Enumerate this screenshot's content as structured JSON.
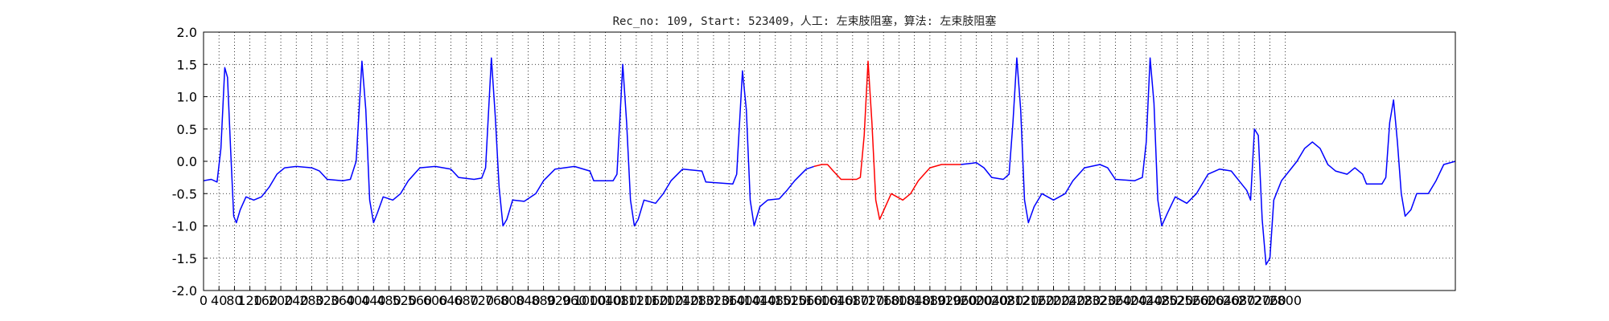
{
  "chart_data": {
    "type": "line",
    "title": "Rec_no: 109, Start: 523409，人工: 左束肢阻塞，算法: 左束肢阻塞",
    "xlabel": "",
    "ylabel": "",
    "xlim": [
      0,
      3240
    ],
    "ylim": [
      -2.0,
      2.0
    ],
    "y_ticks": [
      "2.0",
      "1.5",
      "1.0",
      "0.5",
      "0.0",
      "-0.5",
      "-1.0",
      "-1.5",
      "-2.0"
    ],
    "y_tick_values": [
      2.0,
      1.5,
      1.0,
      0.5,
      0.0,
      -0.5,
      -1.0,
      -1.5,
      -2.0
    ],
    "x_tick_values": [
      0,
      40,
      80,
      120,
      160,
      200,
      240,
      280,
      320,
      360,
      400,
      440,
      480,
      520,
      560,
      600,
      640,
      680,
      720,
      760,
      800,
      840,
      880,
      920,
      960,
      1000,
      1040,
      1080,
      1120,
      1160,
      1200,
      1240,
      1280,
      1320,
      1360,
      1400,
      1440,
      1480,
      1520,
      1560,
      1600,
      1640,
      1680,
      1720,
      1760,
      1800,
      1840,
      1880,
      1920,
      1960,
      2000,
      2040,
      2080,
      2120,
      2160,
      2200,
      2240,
      2280,
      2320,
      2360,
      2400,
      2440,
      2480,
      2520,
      2560,
      2600,
      2640,
      2680,
      2720,
      2760,
      2800
    ],
    "grid": true,
    "grid_style": "dotted",
    "series": [
      {
        "color": "#0000ff",
        "segments": [
          [
            [
              0,
              -0.3
            ],
            [
              20,
              -0.28
            ],
            [
              35,
              -0.32
            ],
            [
              45,
              0.2
            ],
            [
              55,
              1.45
            ],
            [
              62,
              1.3
            ],
            [
              70,
              0.2
            ],
            [
              78,
              -0.85
            ],
            [
              85,
              -0.95
            ],
            [
              95,
              -0.75
            ],
            [
              110,
              -0.55
            ],
            [
              130,
              -0.6
            ],
            [
              150,
              -0.55
            ],
            [
              170,
              -0.4
            ],
            [
              190,
              -0.2
            ],
            [
              210,
              -0.1
            ],
            [
              240,
              -0.08
            ],
            [
              280,
              -0.1
            ],
            [
              300,
              -0.15
            ],
            [
              320,
              -0.28
            ],
            [
              360,
              -0.3
            ],
            [
              380,
              -0.28
            ],
            [
              395,
              0.0
            ],
            [
              410,
              1.55
            ],
            [
              420,
              0.8
            ],
            [
              430,
              -0.6
            ],
            [
              440,
              -0.95
            ],
            [
              450,
              -0.8
            ],
            [
              465,
              -0.55
            ],
            [
              490,
              -0.6
            ],
            [
              510,
              -0.5
            ],
            [
              530,
              -0.3
            ],
            [
              560,
              -0.1
            ],
            [
              600,
              -0.08
            ],
            [
              640,
              -0.12
            ],
            [
              660,
              -0.25
            ],
            [
              700,
              -0.28
            ],
            [
              720,
              -0.26
            ],
            [
              730,
              -0.1
            ],
            [
              745,
              1.6
            ],
            [
              755,
              0.7
            ],
            [
              765,
              -0.4
            ],
            [
              775,
              -1.0
            ],
            [
              785,
              -0.9
            ],
            [
              800,
              -0.6
            ],
            [
              830,
              -0.62
            ],
            [
              860,
              -0.5
            ],
            [
              880,
              -0.3
            ],
            [
              910,
              -0.12
            ],
            [
              960,
              -0.08
            ],
            [
              1000,
              -0.15
            ],
            [
              1010,
              -0.3
            ],
            [
              1060,
              -0.3
            ],
            [
              1070,
              -0.2
            ],
            [
              1085,
              1.5
            ],
            [
              1095,
              0.6
            ],
            [
              1105,
              -0.6
            ],
            [
              1115,
              -1.0
            ],
            [
              1125,
              -0.9
            ],
            [
              1140,
              -0.6
            ],
            [
              1170,
              -0.65
            ],
            [
              1190,
              -0.5
            ],
            [
              1210,
              -0.3
            ],
            [
              1240,
              -0.12
            ],
            [
              1290,
              -0.15
            ],
            [
              1300,
              -0.32
            ],
            [
              1370,
              -0.35
            ],
            [
              1380,
              -0.2
            ],
            [
              1395,
              1.4
            ],
            [
              1405,
              0.8
            ],
            [
              1415,
              -0.6
            ],
            [
              1425,
              -1.0
            ],
            [
              1440,
              -0.7
            ],
            [
              1460,
              -0.6
            ],
            [
              1490,
              -0.58
            ],
            [
              1510,
              -0.45
            ],
            [
              1530,
              -0.3
            ],
            [
              1560,
              -0.12
            ],
            [
              1580,
              -0.08
            ]
          ],
          [
            [
              1960,
              -0.05
            ],
            [
              1990,
              -0.03
            ],
            [
              2000,
              -0.02
            ],
            [
              2020,
              -0.1
            ],
            [
              2040,
              -0.25
            ],
            [
              2070,
              -0.28
            ],
            [
              2085,
              -0.2
            ],
            [
              2095,
              0.6
            ],
            [
              2105,
              1.6
            ],
            [
              2115,
              0.8
            ],
            [
              2125,
              -0.6
            ],
            [
              2135,
              -0.95
            ],
            [
              2150,
              -0.7
            ],
            [
              2170,
              -0.5
            ],
            [
              2200,
              -0.6
            ],
            [
              2230,
              -0.5
            ],
            [
              2250,
              -0.3
            ],
            [
              2280,
              -0.1
            ],
            [
              2320,
              -0.05
            ],
            [
              2340,
              -0.1
            ],
            [
              2360,
              -0.28
            ],
            [
              2410,
              -0.3
            ],
            [
              2430,
              -0.25
            ],
            [
              2440,
              0.3
            ],
            [
              2450,
              1.6
            ],
            [
              2460,
              0.9
            ],
            [
              2470,
              -0.6
            ],
            [
              2480,
              -1.0
            ],
            [
              2495,
              -0.8
            ],
            [
              2515,
              -0.55
            ],
            [
              2545,
              -0.65
            ],
            [
              2570,
              -0.5
            ],
            [
              2600,
              -0.2
            ],
            [
              2630,
              -0.12
            ],
            [
              2660,
              -0.15
            ],
            [
              2680,
              -0.3
            ],
            [
              2700,
              -0.45
            ],
            [
              2710,
              -0.6
            ],
            [
              2720,
              0.5
            ],
            [
              2730,
              0.4
            ],
            [
              2740,
              -0.9
            ],
            [
              2750,
              -1.6
            ],
            [
              2760,
              -1.5
            ],
            [
              2770,
              -0.6
            ],
            [
              2790,
              -0.3
            ],
            [
              2810,
              -0.15
            ],
            [
              2830,
              0.0
            ],
            [
              2850,
              0.2
            ],
            [
              2870,
              0.3
            ],
            [
              2890,
              0.2
            ],
            [
              2910,
              -0.05
            ],
            [
              2930,
              -0.15
            ],
            [
              2960,
              -0.2
            ],
            [
              2980,
              -0.1
            ],
            [
              3000,
              -0.2
            ],
            [
              3010,
              -0.35
            ],
            [
              3050,
              -0.35
            ],
            [
              3060,
              -0.25
            ],
            [
              3070,
              0.6
            ],
            [
              3080,
              0.95
            ],
            [
              3090,
              0.3
            ],
            [
              3100,
              -0.5
            ],
            [
              3110,
              -0.85
            ],
            [
              3125,
              -0.75
            ],
            [
              3140,
              -0.5
            ],
            [
              3170,
              -0.5
            ],
            [
              3190,
              -0.3
            ],
            [
              3210,
              -0.05
            ],
            [
              3240,
              0.0
            ]
          ]
        ]
      },
      {
        "color": "#ff0000",
        "segments": [
          [
            [
              1580,
              -0.08
            ],
            [
              1600,
              -0.05
            ],
            [
              1615,
              -0.05
            ],
            [
              1630,
              -0.15
            ],
            [
              1650,
              -0.28
            ],
            [
              1690,
              -0.28
            ],
            [
              1700,
              -0.25
            ],
            [
              1710,
              0.4
            ],
            [
              1720,
              1.55
            ],
            [
              1730,
              0.6
            ],
            [
              1740,
              -0.6
            ],
            [
              1750,
              -0.9
            ],
            [
              1765,
              -0.7
            ],
            [
              1780,
              -0.5
            ],
            [
              1810,
              -0.6
            ],
            [
              1830,
              -0.5
            ],
            [
              1850,
              -0.3
            ],
            [
              1880,
              -0.1
            ],
            [
              1910,
              -0.05
            ],
            [
              1940,
              -0.05
            ],
            [
              1960,
              -0.05
            ]
          ]
        ]
      }
    ]
  }
}
